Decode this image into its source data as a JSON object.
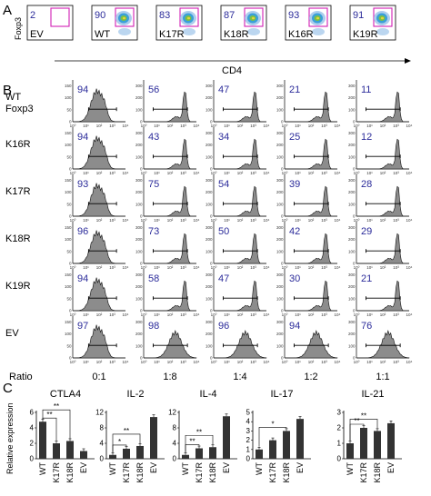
{
  "panel_A": {
    "letter": "A",
    "y_axis_label": "Foxp3",
    "x_axis_label": "CD4",
    "plots": [
      {
        "label": "EV",
        "percent": "2"
      },
      {
        "label": "WT",
        "percent": "90"
      },
      {
        "label": "K17R",
        "percent": "83"
      },
      {
        "label": "K18R",
        "percent": "87"
      },
      {
        "label": "K16R",
        "percent": "93"
      },
      {
        "label": "K19R",
        "percent": "91"
      }
    ]
  },
  "panel_B": {
    "letter": "B",
    "row_labels": [
      [
        "WT",
        "Foxp3"
      ],
      [
        "K16R"
      ],
      [
        "K17R"
      ],
      [
        "K18R"
      ],
      [
        "K19R"
      ],
      [
        "EV"
      ]
    ],
    "values": [
      [
        "94",
        "56",
        "47",
        "21",
        "11"
      ],
      [
        "94",
        "43",
        "34",
        "25",
        "12"
      ],
      [
        "93",
        "75",
        "54",
        "39",
        "28"
      ],
      [
        "96",
        "73",
        "50",
        "42",
        "29"
      ],
      [
        "94",
        "58",
        "47",
        "30",
        "21"
      ],
      [
        "97",
        "98",
        "96",
        "94",
        "76"
      ]
    ],
    "ratio_label": "Ratio",
    "ratios": [
      "0:1",
      "1:8",
      "1:4",
      "1:2",
      "1:1"
    ],
    "y_ticks_col1": [
      "0",
      "50",
      "100",
      "150"
    ],
    "y_ticks_other": [
      "0",
      "100",
      "200",
      "300"
    ],
    "x_ticks": [
      "10⁰",
      "10¹",
      "10²",
      "10³",
      "10⁴"
    ]
  },
  "panel_C": {
    "letter": "C",
    "y_axis_label": "Relative expression",
    "chart_data": [
      {
        "type": "bar",
        "title": "CTLA4",
        "categories": [
          "WT",
          "K17R",
          "K18R",
          "EV"
        ],
        "values": [
          4.8,
          2.0,
          2.3,
          1.0
        ],
        "ylim": [
          0,
          6
        ],
        "yticks": [
          "0",
          "2",
          "4",
          "6"
        ],
        "significance": [
          {
            "from": "WT",
            "to": "K17R",
            "label": "**"
          },
          {
            "from": "WT",
            "to": "K18R",
            "label": "**"
          }
        ]
      },
      {
        "type": "bar",
        "title": "IL-2",
        "categories": [
          "WT",
          "K17R",
          "K18R",
          "EV"
        ],
        "values": [
          1.0,
          2.6,
          3.3,
          10.8
        ],
        "ylim": [
          0,
          12
        ],
        "yticks": [
          "0",
          "4",
          "8",
          "12"
        ],
        "significance": [
          {
            "from": "WT",
            "to": "K17R",
            "label": "*"
          },
          {
            "from": "WT",
            "to": "K18R",
            "label": "**"
          }
        ]
      },
      {
        "type": "bar",
        "title": "IL-4",
        "categories": [
          "WT",
          "K17R",
          "K18R",
          "EV"
        ],
        "values": [
          1.0,
          2.7,
          3.0,
          11.0
        ],
        "ylim": [
          0,
          12
        ],
        "yticks": [
          "0",
          "4",
          "8",
          "12"
        ],
        "significance": [
          {
            "from": "WT",
            "to": "K17R",
            "label": "**"
          },
          {
            "from": "WT",
            "to": "K18R",
            "label": "**"
          }
        ]
      },
      {
        "type": "bar",
        "title": "IL-17",
        "categories": [
          "WT",
          "K17R",
          "K18R",
          "EV"
        ],
        "values": [
          1.0,
          2.0,
          3.0,
          4.3
        ],
        "ylim": [
          0,
          5
        ],
        "yticks": [
          "0",
          "1",
          "2",
          "3",
          "4",
          "5"
        ],
        "significance": [
          {
            "from": "WT",
            "to": "K18R",
            "label": "*"
          }
        ]
      },
      {
        "type": "bar",
        "title": "IL-21",
        "categories": [
          "WT",
          "K17R",
          "K18R",
          "EV"
        ],
        "values": [
          1.0,
          2.0,
          1.8,
          2.3
        ],
        "ylim": [
          0,
          3
        ],
        "yticks": [
          "0",
          "1",
          "2",
          "3"
        ],
        "significance": [
          {
            "from": "WT",
            "to": "K17R",
            "label": "**"
          },
          {
            "from": "WT",
            "to": "K18R",
            "label": "**"
          }
        ]
      }
    ]
  }
}
